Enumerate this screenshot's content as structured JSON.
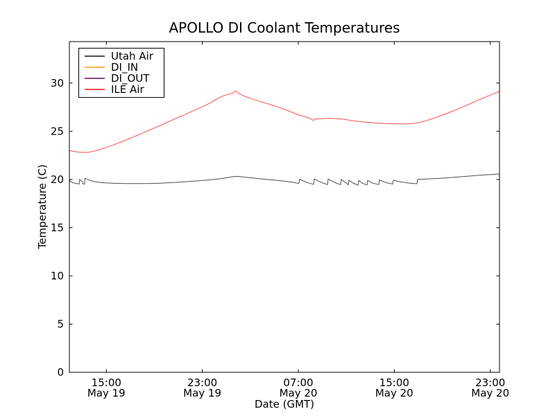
{
  "chart_data": {
    "type": "line",
    "title": "APOLLO DI Coolant Temperatures",
    "xlabel": "Date (GMT)",
    "ylabel": "Temperature (C)",
    "x_unit": "hours since May 19 00:00 GMT",
    "xlim": [
      11.92,
      47.77
    ],
    "ylim": [
      0,
      34.3
    ],
    "grid": false,
    "legend_position": "upper left",
    "x_ticks": [
      {
        "t": 15,
        "time": "15:00",
        "date": "May 19"
      },
      {
        "t": 23,
        "time": "23:00",
        "date": "May 19"
      },
      {
        "t": 31,
        "time": "07:00",
        "date": "May 20"
      },
      {
        "t": 39,
        "time": "15:00",
        "date": "May 20"
      },
      {
        "t": 47,
        "time": "23:00",
        "date": "May 20"
      }
    ],
    "y_ticks": [
      0,
      5,
      10,
      15,
      20,
      25,
      30
    ],
    "series": [
      {
        "name": "Utah Air",
        "color": "#4d4d4d",
        "plot_opacity": 1,
        "points": [
          [
            11.92,
            20.05
          ],
          [
            11.98,
            19.82
          ],
          [
            12.1,
            19.72
          ],
          [
            12.3,
            19.63
          ],
          [
            12.55,
            19.57
          ],
          [
            12.73,
            19.52
          ],
          [
            12.78,
            20.0
          ],
          [
            12.95,
            19.82
          ],
          [
            13.08,
            19.55
          ],
          [
            13.18,
            19.5
          ],
          [
            13.22,
            20.12
          ],
          [
            13.45,
            20.0
          ],
          [
            13.7,
            19.88
          ],
          [
            14.0,
            19.78
          ],
          [
            14.4,
            19.7
          ],
          [
            14.9,
            19.65
          ],
          [
            15.5,
            19.62
          ],
          [
            16.5,
            19.58
          ],
          [
            17.5,
            19.57
          ],
          [
            18.5,
            19.58
          ],
          [
            19.5,
            19.62
          ],
          [
            20.5,
            19.68
          ],
          [
            21.5,
            19.76
          ],
          [
            22.5,
            19.85
          ],
          [
            23.5,
            19.95
          ],
          [
            24.5,
            20.08
          ],
          [
            25.1,
            20.2
          ],
          [
            25.6,
            20.3
          ],
          [
            25.9,
            20.33
          ],
          [
            26.3,
            20.28
          ],
          [
            27.0,
            20.18
          ],
          [
            28.0,
            20.05
          ],
          [
            29.0,
            19.93
          ],
          [
            30.0,
            19.8
          ],
          [
            30.6,
            19.7
          ],
          [
            31.05,
            19.58
          ],
          [
            31.1,
            20.02
          ],
          [
            31.5,
            19.8
          ],
          [
            31.9,
            19.62
          ],
          [
            32.28,
            19.5
          ],
          [
            32.33,
            20.05
          ],
          [
            32.7,
            19.82
          ],
          [
            33.1,
            19.6
          ],
          [
            33.44,
            19.48
          ],
          [
            33.49,
            20.05
          ],
          [
            33.85,
            19.8
          ],
          [
            34.2,
            19.6
          ],
          [
            34.53,
            19.47
          ],
          [
            34.58,
            20.0
          ],
          [
            34.9,
            19.72
          ],
          [
            35.17,
            19.45
          ],
          [
            35.22,
            19.92
          ],
          [
            35.6,
            19.6
          ],
          [
            35.98,
            19.42
          ],
          [
            36.03,
            19.88
          ],
          [
            36.4,
            19.58
          ],
          [
            36.73,
            19.44
          ],
          [
            36.78,
            19.9
          ],
          [
            37.2,
            19.62
          ],
          [
            37.71,
            19.47
          ],
          [
            37.76,
            19.95
          ],
          [
            38.3,
            19.68
          ],
          [
            38.87,
            19.52
          ],
          [
            38.92,
            19.92
          ],
          [
            39.5,
            19.75
          ],
          [
            40.2,
            19.63
          ],
          [
            40.89,
            19.55
          ],
          [
            40.94,
            20.0
          ],
          [
            41.5,
            20.03
          ],
          [
            42.5,
            20.1
          ],
          [
            43.5,
            20.18
          ],
          [
            44.5,
            20.28
          ],
          [
            45.5,
            20.38
          ],
          [
            46.5,
            20.47
          ],
          [
            47.3,
            20.53
          ],
          [
            47.77,
            20.57
          ]
        ]
      },
      {
        "name": "DI_IN",
        "color": "#f9b255",
        "plot_opacity": 0.55,
        "points": [
          [
            11.92,
            0
          ],
          [
            47.77,
            0
          ]
        ]
      },
      {
        "name": "DI_OUT",
        "color": "#8e4092",
        "plot_opacity": 0.5,
        "points": [
          [
            11.92,
            0
          ],
          [
            47.77,
            0
          ]
        ]
      },
      {
        "name": "ILE Air",
        "color": "#fb4b4b",
        "plot_opacity": 1,
        "points": [
          [
            11.92,
            23.0
          ],
          [
            12.3,
            22.9
          ],
          [
            12.8,
            22.83
          ],
          [
            13.4,
            22.8
          ],
          [
            13.9,
            22.9
          ],
          [
            14.4,
            23.08
          ],
          [
            15.0,
            23.32
          ],
          [
            15.8,
            23.68
          ],
          [
            16.6,
            24.08
          ],
          [
            17.4,
            24.48
          ],
          [
            18.2,
            24.9
          ],
          [
            19.0,
            25.33
          ],
          [
            19.8,
            25.78
          ],
          [
            20.6,
            26.22
          ],
          [
            21.4,
            26.65
          ],
          [
            22.2,
            27.1
          ],
          [
            23.0,
            27.55
          ],
          [
            23.7,
            27.95
          ],
          [
            24.2,
            28.35
          ],
          [
            24.7,
            28.65
          ],
          [
            25.2,
            28.85
          ],
          [
            25.6,
            28.97
          ],
          [
            25.7,
            29.18
          ],
          [
            25.88,
            29.12
          ],
          [
            26.0,
            28.93
          ],
          [
            26.4,
            28.7
          ],
          [
            27.0,
            28.42
          ],
          [
            27.8,
            28.1
          ],
          [
            28.6,
            27.8
          ],
          [
            29.4,
            27.48
          ],
          [
            30.1,
            27.15
          ],
          [
            30.7,
            26.85
          ],
          [
            31.3,
            26.6
          ],
          [
            31.9,
            26.38
          ],
          [
            32.28,
            26.12
          ],
          [
            32.4,
            26.28
          ],
          [
            32.9,
            26.3
          ],
          [
            33.5,
            26.35
          ],
          [
            34.0,
            26.32
          ],
          [
            34.5,
            26.28
          ],
          [
            35.0,
            26.2
          ],
          [
            35.5,
            26.1
          ],
          [
            36.0,
            26.02
          ],
          [
            36.5,
            25.95
          ],
          [
            37.0,
            25.9
          ],
          [
            37.5,
            25.85
          ],
          [
            38.0,
            25.82
          ],
          [
            38.6,
            25.78
          ],
          [
            39.2,
            25.76
          ],
          [
            39.8,
            25.75
          ],
          [
            40.3,
            25.78
          ],
          [
            40.8,
            25.85
          ],
          [
            41.3,
            25.98
          ],
          [
            41.9,
            26.18
          ],
          [
            42.5,
            26.45
          ],
          [
            43.1,
            26.72
          ],
          [
            43.7,
            27.0
          ],
          [
            44.3,
            27.3
          ],
          [
            44.9,
            27.62
          ],
          [
            45.5,
            27.95
          ],
          [
            46.1,
            28.28
          ],
          [
            46.7,
            28.6
          ],
          [
            47.2,
            28.85
          ],
          [
            47.6,
            29.05
          ],
          [
            47.77,
            29.15
          ]
        ]
      }
    ]
  }
}
